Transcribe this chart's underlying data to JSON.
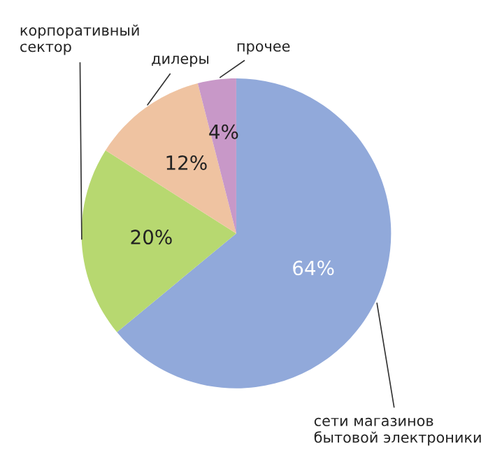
{
  "chart_data": {
    "type": "pie",
    "categories": [
      "сети магазинов\nбытовой электроники",
      "корпоративный\nсектор",
      "дилеры",
      "прочее"
    ],
    "values": [
      64,
      20,
      12,
      4
    ],
    "value_labels": [
      "64%",
      "20%",
      "12%",
      "4%"
    ],
    "colors": [
      "#91a9da",
      "#b7d870",
      "#efc3a1",
      "#c898c8"
    ]
  }
}
